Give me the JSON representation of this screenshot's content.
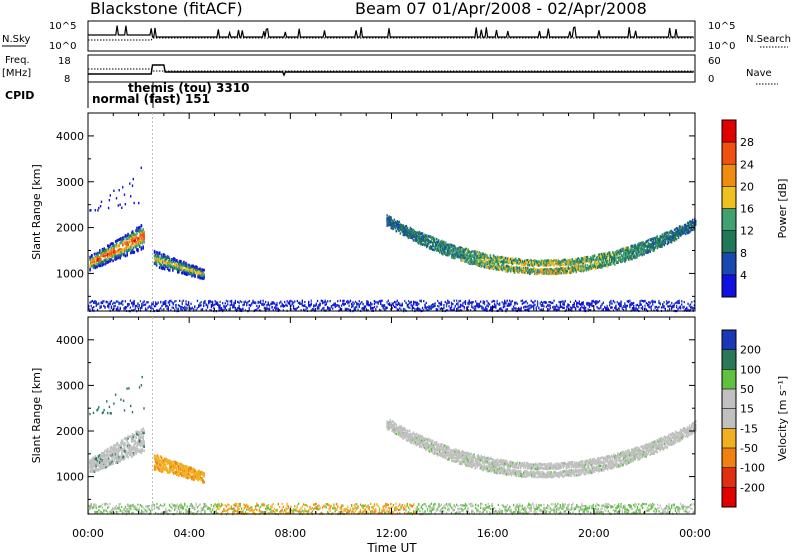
{
  "header": {
    "station_title": "Blackstone (fitACF)",
    "beam_date": "Beam 07   01/Apr/2008 - 02/Apr/2008"
  },
  "strip_labels": {
    "nsky": "N.Sky",
    "nsky_ticks": [
      "10^5",
      "10^0"
    ],
    "nsearch": "N.Search",
    "nsearch_ticks": [
      "10^5",
      "10^0"
    ],
    "freq_line1": "Freq.",
    "freq_line2": "[MHz]",
    "freq_ticks": [
      "18",
      "8"
    ],
    "nave": "Nave",
    "nave_ticks": [
      "60",
      "0"
    ],
    "cpid": "CPID",
    "cpid_mode1": "normal (fast) 151",
    "cpid_mode2": "themis (tou) 3310"
  },
  "chart_data": [
    {
      "type": "heatmap",
      "name": "power-panel",
      "ylabel": "Slant Range [km]",
      "yticks": [
        "4000",
        "3000",
        "2000",
        "1000"
      ],
      "xticks": [
        "00:00",
        "04:00",
        "08:00",
        "12:00",
        "16:00",
        "20:00",
        "00:00"
      ],
      "xlim_hours": [
        0,
        24
      ],
      "ylim_km": [
        180,
        4500
      ],
      "colorbar": {
        "label": "Power [dB]",
        "ticks": [
          "28",
          "24",
          "20",
          "16",
          "12",
          "8",
          "4"
        ],
        "colors": [
          "#e00000",
          "#f05010",
          "#f08c10",
          "#f0c020",
          "#40a070",
          "#207858",
          "#1848b0",
          "#1010e0"
        ]
      },
      "features": [
        {
          "kind": "early-band",
          "t": [
            0.05,
            2.2
          ],
          "range_km": [
            1000,
            2200
          ],
          "peak_db": 24
        },
        {
          "kind": "patch",
          "t": [
            2.6,
            4.6
          ],
          "range_km": [
            850,
            1650
          ],
          "peak_db": 18
        },
        {
          "kind": "arc",
          "t": [
            11.8,
            24
          ],
          "range_km": [
            1150,
            2300
          ],
          "peak_db": 20
        },
        {
          "kind": "ground-floor",
          "t": [
            0,
            24
          ],
          "range_km": [
            180,
            350
          ],
          "peak_db": 6
        }
      ]
    },
    {
      "type": "heatmap",
      "name": "velocity-panel",
      "ylabel": "Slant Range [km]",
      "yticks": [
        "4000",
        "3000",
        "2000",
        "1000"
      ],
      "xticks": [
        "00:00",
        "04:00",
        "08:00",
        "12:00",
        "16:00",
        "20:00",
        "00:00"
      ],
      "xlabel": "Time UT",
      "xlim_hours": [
        0,
        24
      ],
      "ylim_km": [
        180,
        4500
      ],
      "colorbar": {
        "label": "Velocity [m s⁻¹]",
        "ticks": [
          "200",
          "100",
          "50",
          "15",
          "-15",
          "-50",
          "-100",
          "-200"
        ],
        "colors": [
          "#1838b8",
          "#2a7858",
          "#60c040",
          "#c0c0c0",
          "#c0c0c0",
          "#f0b020",
          "#f08010",
          "#e03010",
          "#e00000"
        ]
      },
      "features": [
        {
          "kind": "early-band",
          "t": [
            0.05,
            2.2
          ],
          "range_km": [
            1000,
            2200
          ],
          "velocity": "grey"
        },
        {
          "kind": "patch",
          "t": [
            2.6,
            4.6
          ],
          "range_km": [
            850,
            1650
          ],
          "velocity": "orange"
        },
        {
          "kind": "arc",
          "t": [
            11.8,
            24
          ],
          "range_km": [
            1150,
            2300
          ],
          "velocity": "grey"
        },
        {
          "kind": "ground-floor",
          "t": [
            0,
            24
          ],
          "range_km": [
            180,
            350
          ],
          "velocity": "green-orange"
        }
      ]
    }
  ]
}
